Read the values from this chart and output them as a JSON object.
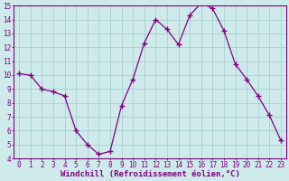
{
  "x": [
    0,
    1,
    2,
    3,
    4,
    5,
    6,
    7,
    8,
    9,
    10,
    11,
    12,
    13,
    14,
    15,
    16,
    17,
    18,
    19,
    20,
    21,
    22,
    23
  ],
  "y": [
    10.1,
    10.0,
    9.0,
    8.8,
    8.5,
    6.0,
    5.0,
    4.3,
    4.5,
    7.8,
    9.7,
    12.3,
    14.0,
    13.3,
    12.2,
    14.3,
    15.2,
    14.8,
    13.2,
    10.8,
    9.7,
    8.5,
    7.1,
    5.3
  ],
  "line_color": "#800080",
  "marker": "+",
  "marker_size": 4,
  "bg_color": "#ceeaea",
  "grid_color": "#aacece",
  "axis_label_color": "#800080",
  "tick_label_color": "#800080",
  "xlabel": "Windchill (Refroidissement éolien,°C)",
  "ylabel": "",
  "xlim": [
    -0.5,
    23.5
  ],
  "ylim": [
    4,
    15
  ],
  "yticks": [
    4,
    5,
    6,
    7,
    8,
    9,
    10,
    11,
    12,
    13,
    14,
    15
  ],
  "xticks": [
    0,
    1,
    2,
    3,
    4,
    5,
    6,
    7,
    8,
    9,
    10,
    11,
    12,
    13,
    14,
    15,
    16,
    17,
    18,
    19,
    20,
    21,
    22,
    23
  ],
  "spine_color": "#800080",
  "tick_fontsize": 5.5,
  "label_fontsize": 6.5,
  "line_width": 0.9,
  "marker_lw": 1.0
}
